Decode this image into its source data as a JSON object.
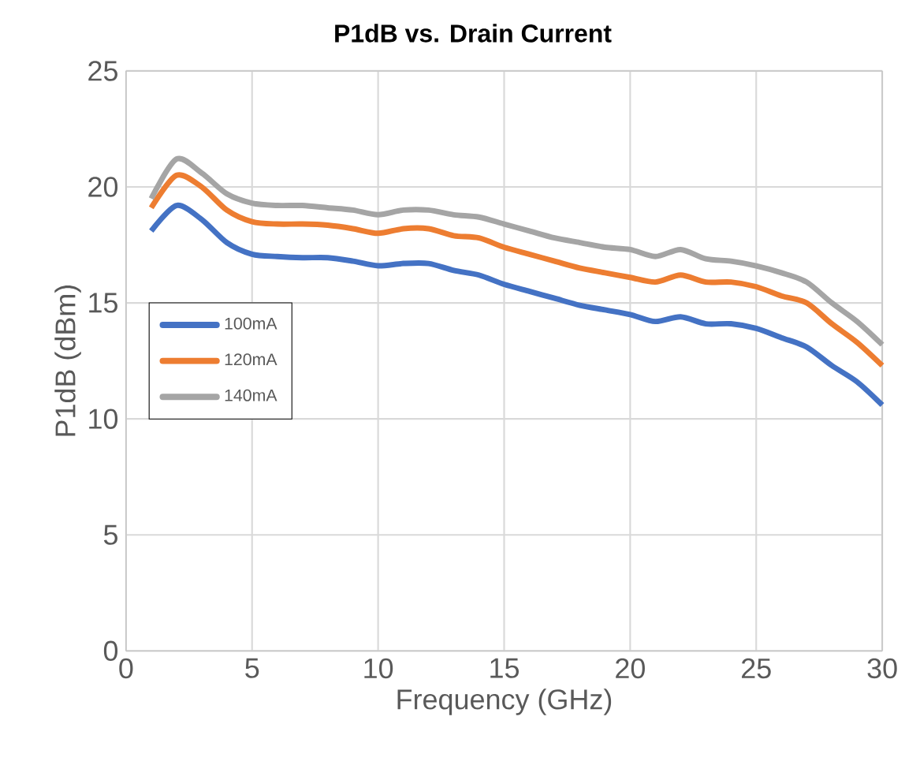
{
  "chart_data": {
    "type": "line",
    "title": "P1dB vs. Drain Current",
    "xlabel": "Frequency (GHz)",
    "ylabel": "P1dB (dBm)",
    "x": [
      1,
      2,
      3,
      4,
      5,
      6,
      7,
      8,
      9,
      10,
      11,
      12,
      13,
      14,
      15,
      16,
      17,
      18,
      19,
      20,
      21,
      22,
      23,
      24,
      25,
      26,
      27,
      28,
      29,
      30
    ],
    "series": [
      {
        "name": "100mA",
        "color": "#4472c4",
        "values": [
          18.1,
          19.2,
          18.6,
          17.6,
          17.1,
          17.0,
          16.95,
          16.95,
          16.8,
          16.6,
          16.7,
          16.7,
          16.4,
          16.2,
          15.8,
          15.5,
          15.2,
          14.9,
          14.7,
          14.5,
          14.2,
          14.4,
          14.1,
          14.1,
          13.9,
          13.5,
          13.1,
          12.3,
          11.6,
          10.6
        ]
      },
      {
        "name": "120mA",
        "color": "#ed7d31",
        "values": [
          19.1,
          20.5,
          20.0,
          19.0,
          18.5,
          18.4,
          18.4,
          18.35,
          18.2,
          18.0,
          18.2,
          18.2,
          17.9,
          17.8,
          17.4,
          17.1,
          16.8,
          16.5,
          16.3,
          16.1,
          15.9,
          16.2,
          15.9,
          15.9,
          15.7,
          15.3,
          15.0,
          14.1,
          13.3,
          12.3
        ]
      },
      {
        "name": "140mA",
        "color": "#a5a5a5",
        "values": [
          19.5,
          21.2,
          20.6,
          19.7,
          19.3,
          19.2,
          19.2,
          19.1,
          19.0,
          18.8,
          19.0,
          19.0,
          18.8,
          18.7,
          18.4,
          18.1,
          17.8,
          17.6,
          17.4,
          17.3,
          17.0,
          17.3,
          16.9,
          16.8,
          16.6,
          16.3,
          15.9,
          15.0,
          14.2,
          13.2
        ]
      }
    ],
    "xlim": [
      0,
      30
    ],
    "xticks": [
      0,
      5,
      10,
      15,
      20,
      25,
      30
    ],
    "ylim": [
      0,
      25
    ],
    "yticks": [
      0,
      5,
      10,
      15,
      20,
      25
    ],
    "grid": true,
    "legend": "left",
    "marker": "none",
    "line_style": "solid"
  }
}
